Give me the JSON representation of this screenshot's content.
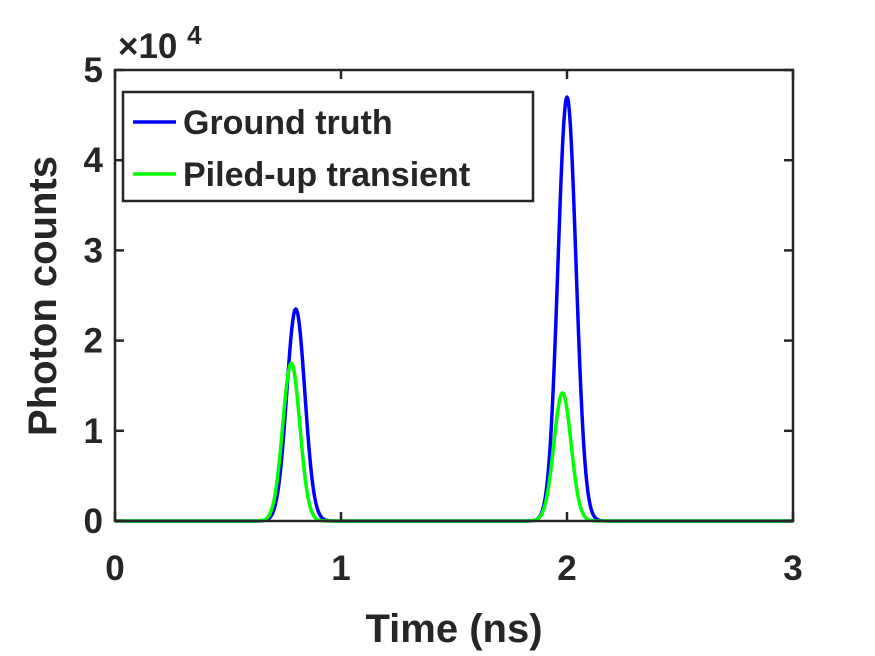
{
  "chart_data": {
    "type": "line",
    "title": "",
    "xlabel": "Time (ns)",
    "ylabel": "Photon counts",
    "xlim": [
      0,
      3
    ],
    "ylim": [
      0,
      50000
    ],
    "y_exponent": {
      "base": "×10",
      "power": "4"
    },
    "x_ticks": [
      0,
      1,
      2,
      3
    ],
    "x_tick_labels": [
      "0",
      "1",
      "2",
      "3"
    ],
    "y_ticks": [
      0,
      10000,
      20000,
      30000,
      40000,
      50000
    ],
    "y_tick_labels": [
      "0",
      "1",
      "2",
      "3",
      "4",
      "5"
    ],
    "grid": false,
    "legend_position": "top-left",
    "series": [
      {
        "name": "Ground truth",
        "color": "#0000ff",
        "peaks": [
          {
            "center": 0.8,
            "amplitude": 23500,
            "sigma": 0.04
          },
          {
            "center": 2.0,
            "amplitude": 47000,
            "sigma": 0.04
          }
        ]
      },
      {
        "name": "Piled-up transient",
        "color": "#00ff00",
        "peaks": [
          {
            "center": 0.78,
            "amplitude": 17500,
            "sigma": 0.038
          },
          {
            "center": 1.98,
            "amplitude": 14200,
            "sigma": 0.038
          }
        ]
      }
    ]
  }
}
